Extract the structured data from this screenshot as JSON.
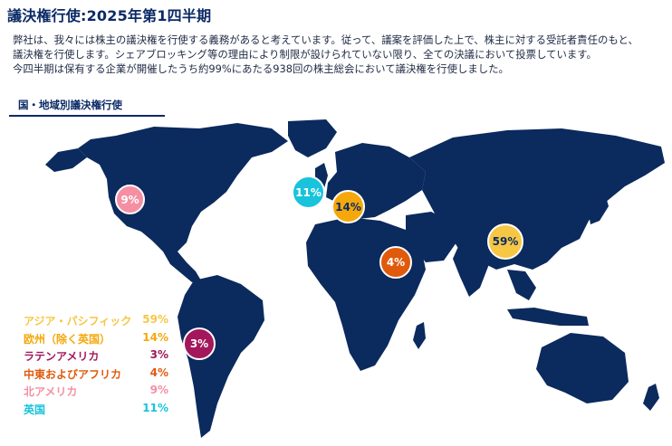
{
  "title": "議決権行使:2025年第1四半期",
  "intro": {
    "line1": "弊社は、我々には株主の議決権を行使する義務があると考えています。従って、議案を評価した上で、株主に対する受託者責任のもと、",
    "line2": "議決権を行使します。シェアブロッキング等の理由により制限が設けられていない限り、全ての決議において投票しています。",
    "line3": "今四半期は保有する企業が開催したうち約99%にあたる938回の株主総会において議決権を行使しました。"
  },
  "section_heading": "国・地域別議決権行使",
  "colors": {
    "map_land": "#0b2a5e",
    "asia_pacific": "#f6c744",
    "europe": "#f4a80a",
    "latin_america": "#a3175c",
    "middle_east_africa": "#e05a0c",
    "north_america": "#f58fa3",
    "uk": "#19c3dc"
  },
  "regions": [
    {
      "key": "asia_pacific",
      "label": "アジア・パシフィック",
      "value": "59%"
    },
    {
      "key": "europe",
      "label": "欧州（除く英国）",
      "value": "14%"
    },
    {
      "key": "latin_america",
      "label": "ラテンアメリカ",
      "value": "3%"
    },
    {
      "key": "middle_east_africa",
      "label": "中東およびアフリカ",
      "value": "4%"
    },
    {
      "key": "north_america",
      "label": "北アメリカ",
      "value": "9%"
    },
    {
      "key": "uk",
      "label": "英国",
      "value": "11%"
    }
  ]
}
